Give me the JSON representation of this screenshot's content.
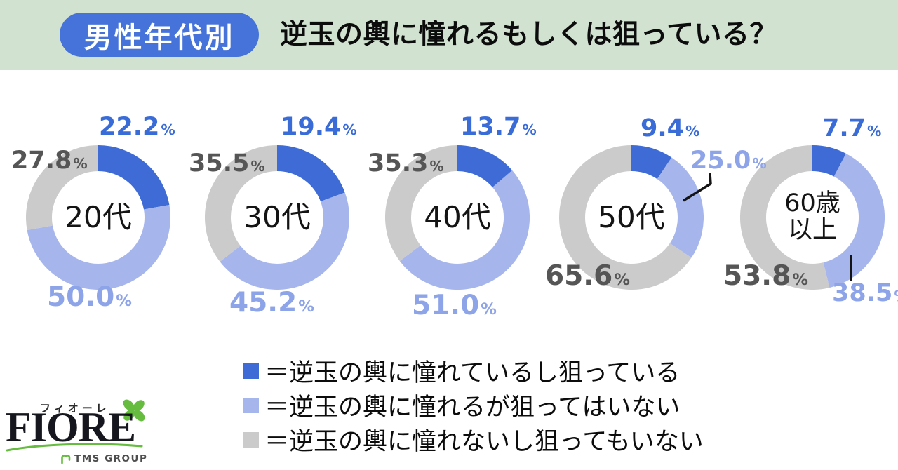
{
  "header": {
    "badge_label": "男性年代別",
    "title": "逆玉の輿に憧れるもしくは狙っている？",
    "badge_color": "#4673D9",
    "background_color": "#D1E2D1"
  },
  "chart_data": {
    "type": "pie",
    "variant": "donut-small-multiples",
    "title": "逆玉の輿に憧れるもしくは狙っている？",
    "group_tag": "男性年代別",
    "unit": "%",
    "segment_order": [
      "aspire_and_aim",
      "aspire_but_not_aim",
      "neither"
    ],
    "colors": {
      "aspire_and_aim": "#3E6BD5",
      "aspire_but_not_aim": "#A6B5EC",
      "neither": "#CBCBCB"
    },
    "label_colors": {
      "dark": "#3A6CD8",
      "light": "#8EA4E8",
      "gray": "#555555"
    },
    "legend_position": "bottom-center",
    "legend": [
      {
        "key": "aspire_and_aim",
        "label": "＝逆玉の輿に憧れているし狙っている"
      },
      {
        "key": "aspire_but_not_aim",
        "label": "＝逆玉の輿に憧れるが狙ってはいない"
      },
      {
        "key": "neither",
        "label": "＝逆玉の輿に憧れないし狙ってもいない"
      }
    ],
    "donuts": [
      {
        "center_label": "20代",
        "values": {
          "aspire_and_aim": 22.2,
          "aspire_but_not_aim": 50.0,
          "neither": 27.8
        }
      },
      {
        "center_label": "30代",
        "values": {
          "aspire_and_aim": 19.4,
          "aspire_but_not_aim": 45.2,
          "neither": 35.5
        }
      },
      {
        "center_label": "40代",
        "values": {
          "aspire_and_aim": 13.7,
          "aspire_but_not_aim": 51.0,
          "neither": 35.3
        }
      },
      {
        "center_label": "50代",
        "values": {
          "aspire_and_aim": 9.4,
          "aspire_but_not_aim": 25.0,
          "neither": 65.6
        },
        "callout": "light-right"
      },
      {
        "center_label": "60歳\n以上",
        "values": {
          "aspire_and_aim": 7.7,
          "aspire_but_not_aim": 38.5,
          "neither": 53.8
        },
        "callout": "light-bottom-right"
      }
    ]
  },
  "logo": {
    "katakana": "フィオーレ",
    "wordmark": "FIORE",
    "group_label": "TMS GROUP",
    "accent_color": "#65BC3F"
  }
}
